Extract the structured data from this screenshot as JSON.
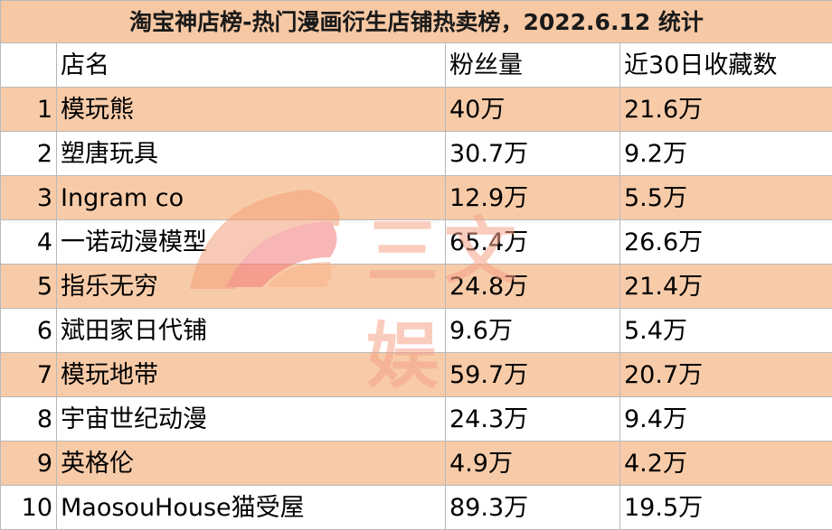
{
  "title": "淘宝神店榜-热门漫画衍生店铺热卖榜，2022.6.12 统计",
  "headers": [
    "",
    "店名",
    "粉丝量",
    "近30日收藏数"
  ],
  "rows": [
    {
      "rank": "1",
      "name": "模玩熊",
      "fans": "40万",
      "favorites": "21.6万"
    },
    {
      "rank": "2",
      "name": "塑唐玩具",
      "fans": "30.7万",
      "favorites": "9.2万"
    },
    {
      "rank": "3",
      "name": "Ingram co",
      "fans": "12.9万",
      "favorites": "5.5万"
    },
    {
      "rank": "4",
      "name": "一诺动漫模型",
      "fans": "65.4万",
      "favorites": "26.6万"
    },
    {
      "rank": "5",
      "name": "指乐无穷",
      "fans": "24.8万",
      "favorites": "21.4万"
    },
    {
      "rank": "6",
      "name": "斌田家日代铺",
      "fans": "9.6万",
      "favorites": "5.4万"
    },
    {
      "rank": "7",
      "name": "模玩地带",
      "fans": "59.7万",
      "favorites": "20.7万"
    },
    {
      "rank": "8",
      "name": "宇宙世纪动漫",
      "fans": "24.3万",
      "favorites": "9.4万"
    },
    {
      "rank": "9",
      "name": "英格伦",
      "fans": "4.9万",
      "favorites": "4.2万"
    },
    {
      "rank": "10",
      "name": "MaosouHouse猫受屋",
      "fans": "89.3万",
      "favorites": "19.5万"
    }
  ],
  "watermark": {
    "text": "三文娱",
    "icon": "fan-logo-icon"
  },
  "colors": {
    "title_bg": "#f6c8a3",
    "stripe": "#f8cba8",
    "watermark": "#f6a388"
  }
}
